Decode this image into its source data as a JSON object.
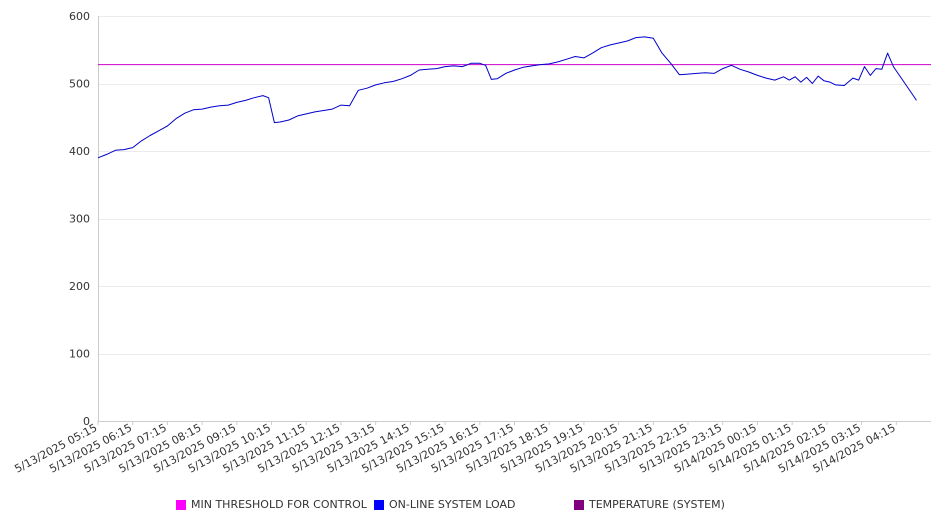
{
  "chart_data": {
    "type": "line",
    "x_tick_labels": [
      "5/13/2025 05:15",
      "5/13/2025 06:15",
      "5/13/2025 07:15",
      "5/13/2025 08:15",
      "5/13/2025 09:15",
      "5/13/2025 10:15",
      "5/13/2025 11:15",
      "5/13/2025 12:15",
      "5/13/2025 13:15",
      "5/13/2025 14:15",
      "5/13/2025 15:15",
      "5/13/2025 16:15",
      "5/13/2025 17:15",
      "5/13/2025 18:15",
      "5/13/2025 19:15",
      "5/13/2025 20:15",
      "5/13/2025 21:15",
      "5/13/2025 22:15",
      "5/13/2025 23:15",
      "5/14/2025 00:15",
      "5/14/2025 01:15",
      "5/14/2025 02:15",
      "5/14/2025 03:15",
      "5/14/2025 04:15"
    ],
    "x_start": "5/13/2025 05:15",
    "x_end": "5/14/2025 05:15",
    "ylim": [
      0,
      600
    ],
    "y_ticks": [
      0,
      100,
      200,
      300,
      400,
      500,
      600
    ],
    "grid": "horizontal",
    "legend_position": "bottom",
    "series": [
      {
        "name": "MIN THRESHOLD FOR CONTROL",
        "color": "#cc00cc",
        "points": [
          [
            "5/13/2025 05:15",
            528
          ],
          [
            "5/14/2025 05:15",
            528
          ]
        ]
      },
      {
        "name": "ON-LINE SYSTEM LOAD",
        "color": "#0000cc",
        "points": [
          [
            "5/13/2025 05:15",
            390
          ],
          [
            "5/13/2025 05:30",
            395
          ],
          [
            "5/13/2025 05:45",
            401
          ],
          [
            "5/13/2025 06:00",
            402
          ],
          [
            "5/13/2025 06:15",
            405
          ],
          [
            "5/13/2025 06:30",
            415
          ],
          [
            "5/13/2025 06:45",
            423
          ],
          [
            "5/13/2025 07:00",
            430
          ],
          [
            "5/13/2025 07:15",
            437
          ],
          [
            "5/13/2025 07:30",
            448
          ],
          [
            "5/13/2025 07:45",
            456
          ],
          [
            "5/13/2025 08:00",
            461
          ],
          [
            "5/13/2025 08:15",
            462
          ],
          [
            "5/13/2025 08:30",
            465
          ],
          [
            "5/13/2025 08:45",
            467
          ],
          [
            "5/13/2025 09:00",
            468
          ],
          [
            "5/13/2025 09:15",
            472
          ],
          [
            "5/13/2025 09:30",
            475
          ],
          [
            "5/13/2025 09:45",
            479
          ],
          [
            "5/13/2025 10:00",
            482
          ],
          [
            "5/13/2025 10:10",
            479
          ],
          [
            "5/13/2025 10:20",
            442
          ],
          [
            "5/13/2025 10:30",
            443
          ],
          [
            "5/13/2025 10:45",
            446
          ],
          [
            "5/13/2025 11:00",
            452
          ],
          [
            "5/13/2025 11:15",
            455
          ],
          [
            "5/13/2025 11:30",
            458
          ],
          [
            "5/13/2025 11:45",
            460
          ],
          [
            "5/13/2025 12:00",
            462
          ],
          [
            "5/13/2025 12:15",
            468
          ],
          [
            "5/13/2025 12:30",
            467
          ],
          [
            "5/13/2025 12:45",
            490
          ],
          [
            "5/13/2025 13:00",
            493
          ],
          [
            "5/13/2025 13:15",
            498
          ],
          [
            "5/13/2025 13:30",
            501
          ],
          [
            "5/13/2025 13:45",
            503
          ],
          [
            "5/13/2025 14:00",
            507
          ],
          [
            "5/13/2025 14:15",
            512
          ],
          [
            "5/13/2025 14:30",
            520
          ],
          [
            "5/13/2025 14:45",
            521
          ],
          [
            "5/13/2025 15:00",
            522
          ],
          [
            "5/13/2025 15:15",
            525
          ],
          [
            "5/13/2025 15:30",
            526
          ],
          [
            "5/13/2025 15:45",
            525
          ],
          [
            "5/13/2025 16:00",
            530
          ],
          [
            "5/13/2025 16:15",
            530
          ],
          [
            "5/13/2025 16:25",
            527
          ],
          [
            "5/13/2025 16:35",
            506
          ],
          [
            "5/13/2025 16:45",
            507
          ],
          [
            "5/13/2025 17:00",
            515
          ],
          [
            "5/13/2025 17:15",
            520
          ],
          [
            "5/13/2025 17:30",
            524
          ],
          [
            "5/13/2025 17:45",
            526
          ],
          [
            "5/13/2025 18:00",
            528
          ],
          [
            "5/13/2025 18:15",
            529
          ],
          [
            "5/13/2025 18:30",
            532
          ],
          [
            "5/13/2025 18:45",
            536
          ],
          [
            "5/13/2025 19:00",
            540
          ],
          [
            "5/13/2025 19:15",
            538
          ],
          [
            "5/13/2025 19:30",
            545
          ],
          [
            "5/13/2025 19:45",
            553
          ],
          [
            "5/13/2025 20:00",
            557
          ],
          [
            "5/13/2025 20:15",
            560
          ],
          [
            "5/13/2025 20:30",
            563
          ],
          [
            "5/13/2025 20:45",
            568
          ],
          [
            "5/13/2025 21:00",
            569
          ],
          [
            "5/13/2025 21:15",
            567
          ],
          [
            "5/13/2025 21:30",
            545
          ],
          [
            "5/13/2025 21:45",
            530
          ],
          [
            "5/13/2025 22:00",
            513
          ],
          [
            "5/13/2025 22:15",
            514
          ],
          [
            "5/13/2025 22:30",
            515
          ],
          [
            "5/13/2025 22:45",
            516
          ],
          [
            "5/13/2025 23:00",
            515
          ],
          [
            "5/13/2025 23:15",
            522
          ],
          [
            "5/13/2025 23:30",
            527
          ],
          [
            "5/13/2025 23:45",
            521
          ],
          [
            "5/14/2025 00:00",
            517
          ],
          [
            "5/14/2025 00:15",
            512
          ],
          [
            "5/14/2025 00:30",
            508
          ],
          [
            "5/14/2025 00:45",
            505
          ],
          [
            "5/14/2025 01:00",
            510
          ],
          [
            "5/14/2025 01:10",
            505
          ],
          [
            "5/14/2025 01:20",
            510
          ],
          [
            "5/14/2025 01:30",
            502
          ],
          [
            "5/14/2025 01:40",
            509
          ],
          [
            "5/14/2025 01:50",
            500
          ],
          [
            "5/14/2025 02:00",
            511
          ],
          [
            "5/14/2025 02:10",
            504
          ],
          [
            "5/14/2025 02:20",
            502
          ],
          [
            "5/14/2025 02:30",
            498
          ],
          [
            "5/14/2025 02:45",
            497
          ],
          [
            "5/14/2025 03:00",
            508
          ],
          [
            "5/14/2025 03:10",
            505
          ],
          [
            "5/14/2025 03:20",
            525
          ],
          [
            "5/14/2025 03:30",
            512
          ],
          [
            "5/14/2025 03:40",
            522
          ],
          [
            "5/14/2025 03:50",
            521
          ],
          [
            "5/14/2025 04:00",
            545
          ],
          [
            "5/14/2025 04:10",
            525
          ],
          [
            "5/14/2025 04:30",
            500
          ],
          [
            "5/14/2025 04:50",
            475
          ]
        ]
      },
      {
        "name": "TEMPERATURE (SYSTEM)",
        "color": "#800080",
        "points": []
      }
    ]
  },
  "legend": [
    {
      "label": "MIN THRESHOLD FOR CONTROL",
      "color": "#ff00ff"
    },
    {
      "label": "ON-LINE SYSTEM LOAD",
      "color": "#0000ff"
    },
    {
      "label": "TEMPERATURE (SYSTEM)",
      "color": "#800080"
    }
  ]
}
